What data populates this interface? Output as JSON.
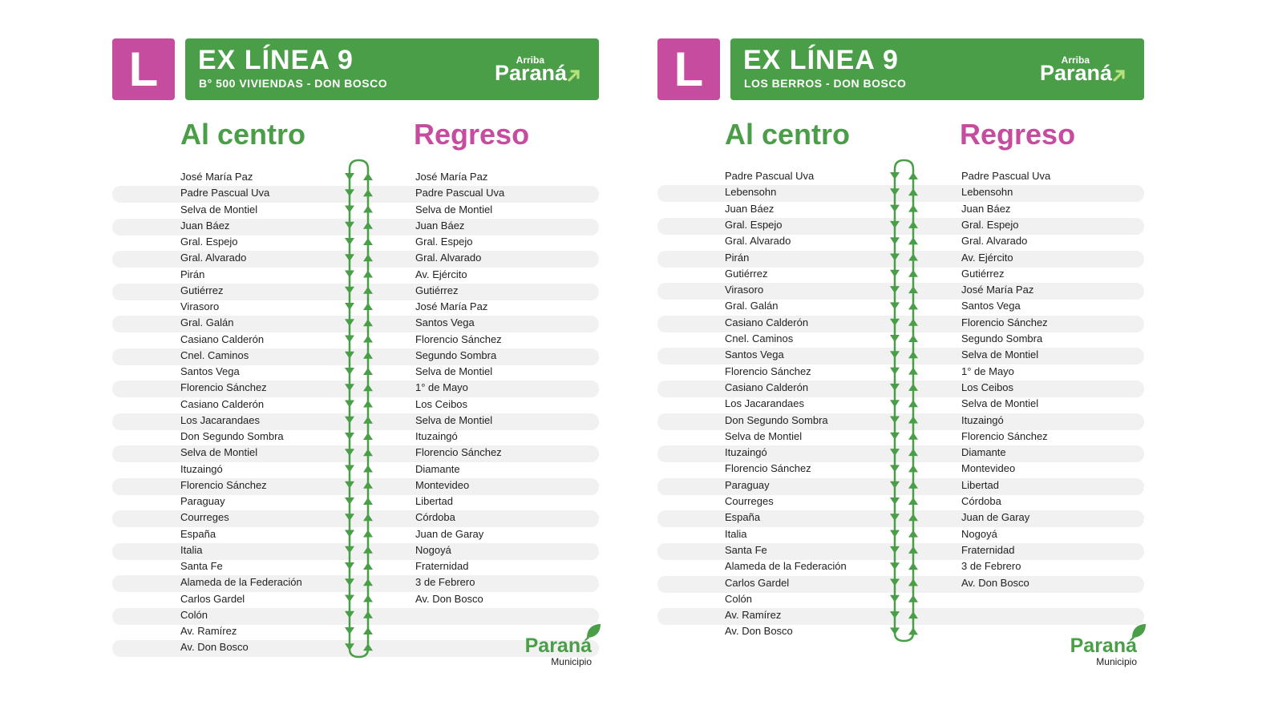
{
  "panels": [
    {
      "line_letter": "L",
      "title": "EX LÍNEA 9",
      "subtitle": "B° 500 VIVIENDAS - DON BOSCO",
      "brand_small": "Arriba",
      "brand_big": "Paraná",
      "col_left_title": "Al centro",
      "col_right_title": "Regreso",
      "outbound": [
        "José María Paz",
        "Padre Pascual Uva",
        "Selva de Montiel",
        "Juan Báez",
        "Gral. Espejo",
        "Gral. Alvarado",
        "Pirán",
        "Gutiérrez",
        "Virasoro",
        "Gral. Galán",
        "Casiano Calderón",
        "Cnel. Caminos",
        "Santos Vega",
        "Florencio Sánchez",
        "Casiano Calderón",
        "Los Jacarandaes",
        "Don Segundo Sombra",
        "Selva de Montiel",
        "Ituzaingó",
        "Florencio Sánchez",
        "Paraguay",
        "Courreges",
        "España",
        "Italia",
        "Santa Fe",
        "Alameda de la Federación",
        "Carlos Gardel",
        "Colón",
        "Av. Ramírez",
        "Av. Don Bosco"
      ],
      "return": [
        "José María Paz",
        "Padre Pascual Uva",
        "Selva de Montiel",
        "Juan Báez",
        "Gral. Espejo",
        "Gral. Alvarado",
        "Av. Ejército",
        "Gutiérrez",
        "José María Paz",
        "Santos Vega",
        "Florencio Sánchez",
        "Segundo Sombra",
        "Selva de Montiel",
        "1° de Mayo",
        "Los Ceibos",
        "Selva de Montiel",
        "Ituzaingó",
        "Florencio Sánchez",
        "Diamante",
        "Montevideo",
        "Libertad",
        "Córdoba",
        "Juan de Garay",
        "Nogoyá",
        "Fraternidad",
        "3 de Febrero",
        "Av. Don Bosco"
      ],
      "footer_brand": "Paraná",
      "footer_sub": "Municipio"
    },
    {
      "line_letter": "L",
      "title": "EX LÍNEA 9",
      "subtitle": "LOS BERROS - DON BOSCO",
      "brand_small": "Arriba",
      "brand_big": "Paraná",
      "col_left_title": "Al centro",
      "col_right_title": "Regreso",
      "outbound": [
        "Padre Pascual Uva",
        "Lebensohn",
        "Juan Báez",
        "Gral. Espejo",
        "Gral. Alvarado",
        "Pirán",
        "Gutiérrez",
        "Virasoro",
        "Gral. Galán",
        "Casiano Calderón",
        "Cnel. Caminos",
        "Santos Vega",
        "Florencio Sánchez",
        "Casiano Calderón",
        "Los Jacarandaes",
        "Don Segundo Sombra",
        "Selva de Montiel",
        "Ituzaingó",
        "Florencio Sánchez",
        "Paraguay",
        "Courreges",
        "España",
        "Italia",
        "Santa Fe",
        "Alameda de la Federación",
        "Carlos Gardel",
        "Colón",
        "Av. Ramírez",
        "Av. Don Bosco"
      ],
      "return": [
        "Padre Pascual Uva",
        "Lebensohn",
        "Juan Báez",
        "Gral. Espejo",
        "Gral. Alvarado",
        "Av. Ejército",
        "Gutiérrez",
        "José María Paz",
        "Santos Vega",
        "Florencio Sánchez",
        "Segundo Sombra",
        "Selva de Montiel",
        "1° de Mayo",
        "Los Ceibos",
        "Selva de Montiel",
        "Ituzaingó",
        "Florencio Sánchez",
        "Diamante",
        "Montevideo",
        "Libertad",
        "Córdoba",
        "Juan de Garay",
        "Nogoyá",
        "Fraternidad",
        "3 de Febrero",
        "Av. Don Bosco"
      ],
      "footer_brand": "Paraná",
      "footer_sub": "Municipio"
    }
  ],
  "colors": {
    "green": "#4a9e48",
    "pink": "#c54c9e",
    "stripe": "#f1f1f1"
  }
}
